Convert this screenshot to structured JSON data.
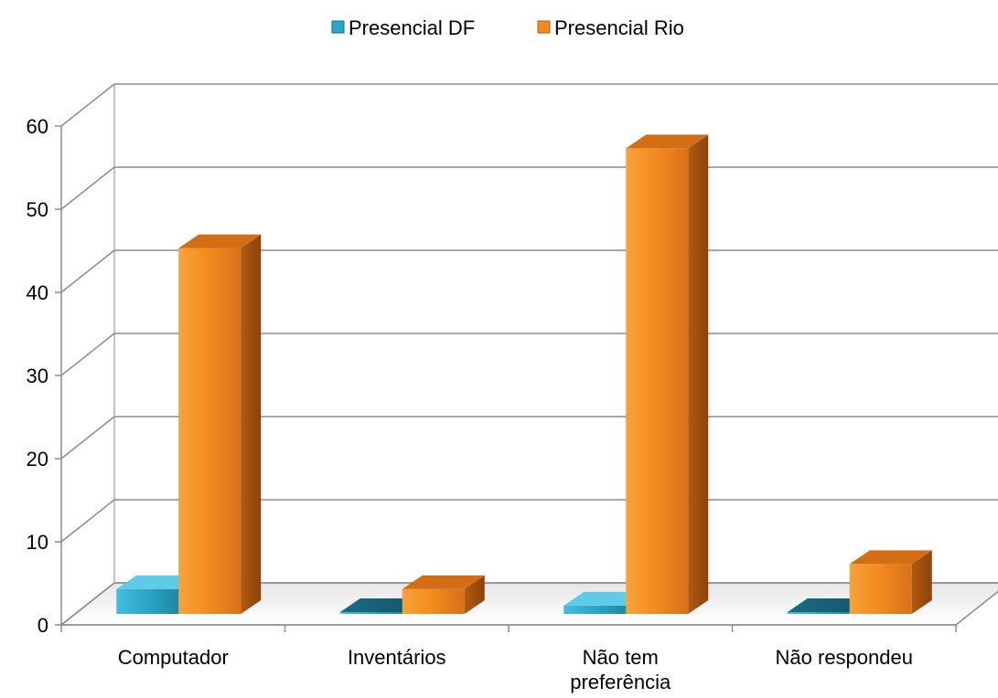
{
  "chart_data": {
    "type": "bar",
    "categories": [
      "Computador",
      "Inventários",
      "Não tem preferência",
      "Não respondeu"
    ],
    "category_lines": [
      [
        "Computador"
      ],
      [
        "Inventários"
      ],
      [
        "Não tem",
        "preferência"
      ],
      [
        "Não respondeu"
      ]
    ],
    "series": [
      {
        "name": "Presencial DF",
        "values": [
          3,
          0,
          1,
          0
        ],
        "color": "#2aa6c8"
      },
      {
        "name": "Presencial Rio",
        "values": [
          44,
          3,
          56,
          6
        ],
        "color": "#f28a1e"
      }
    ],
    "yticks": [
      "0",
      "10",
      "20",
      "30",
      "40",
      "50",
      "60"
    ],
    "ylim": [
      0,
      60
    ],
    "grid": true,
    "legend_position": "top-center",
    "style": "3d-column"
  }
}
